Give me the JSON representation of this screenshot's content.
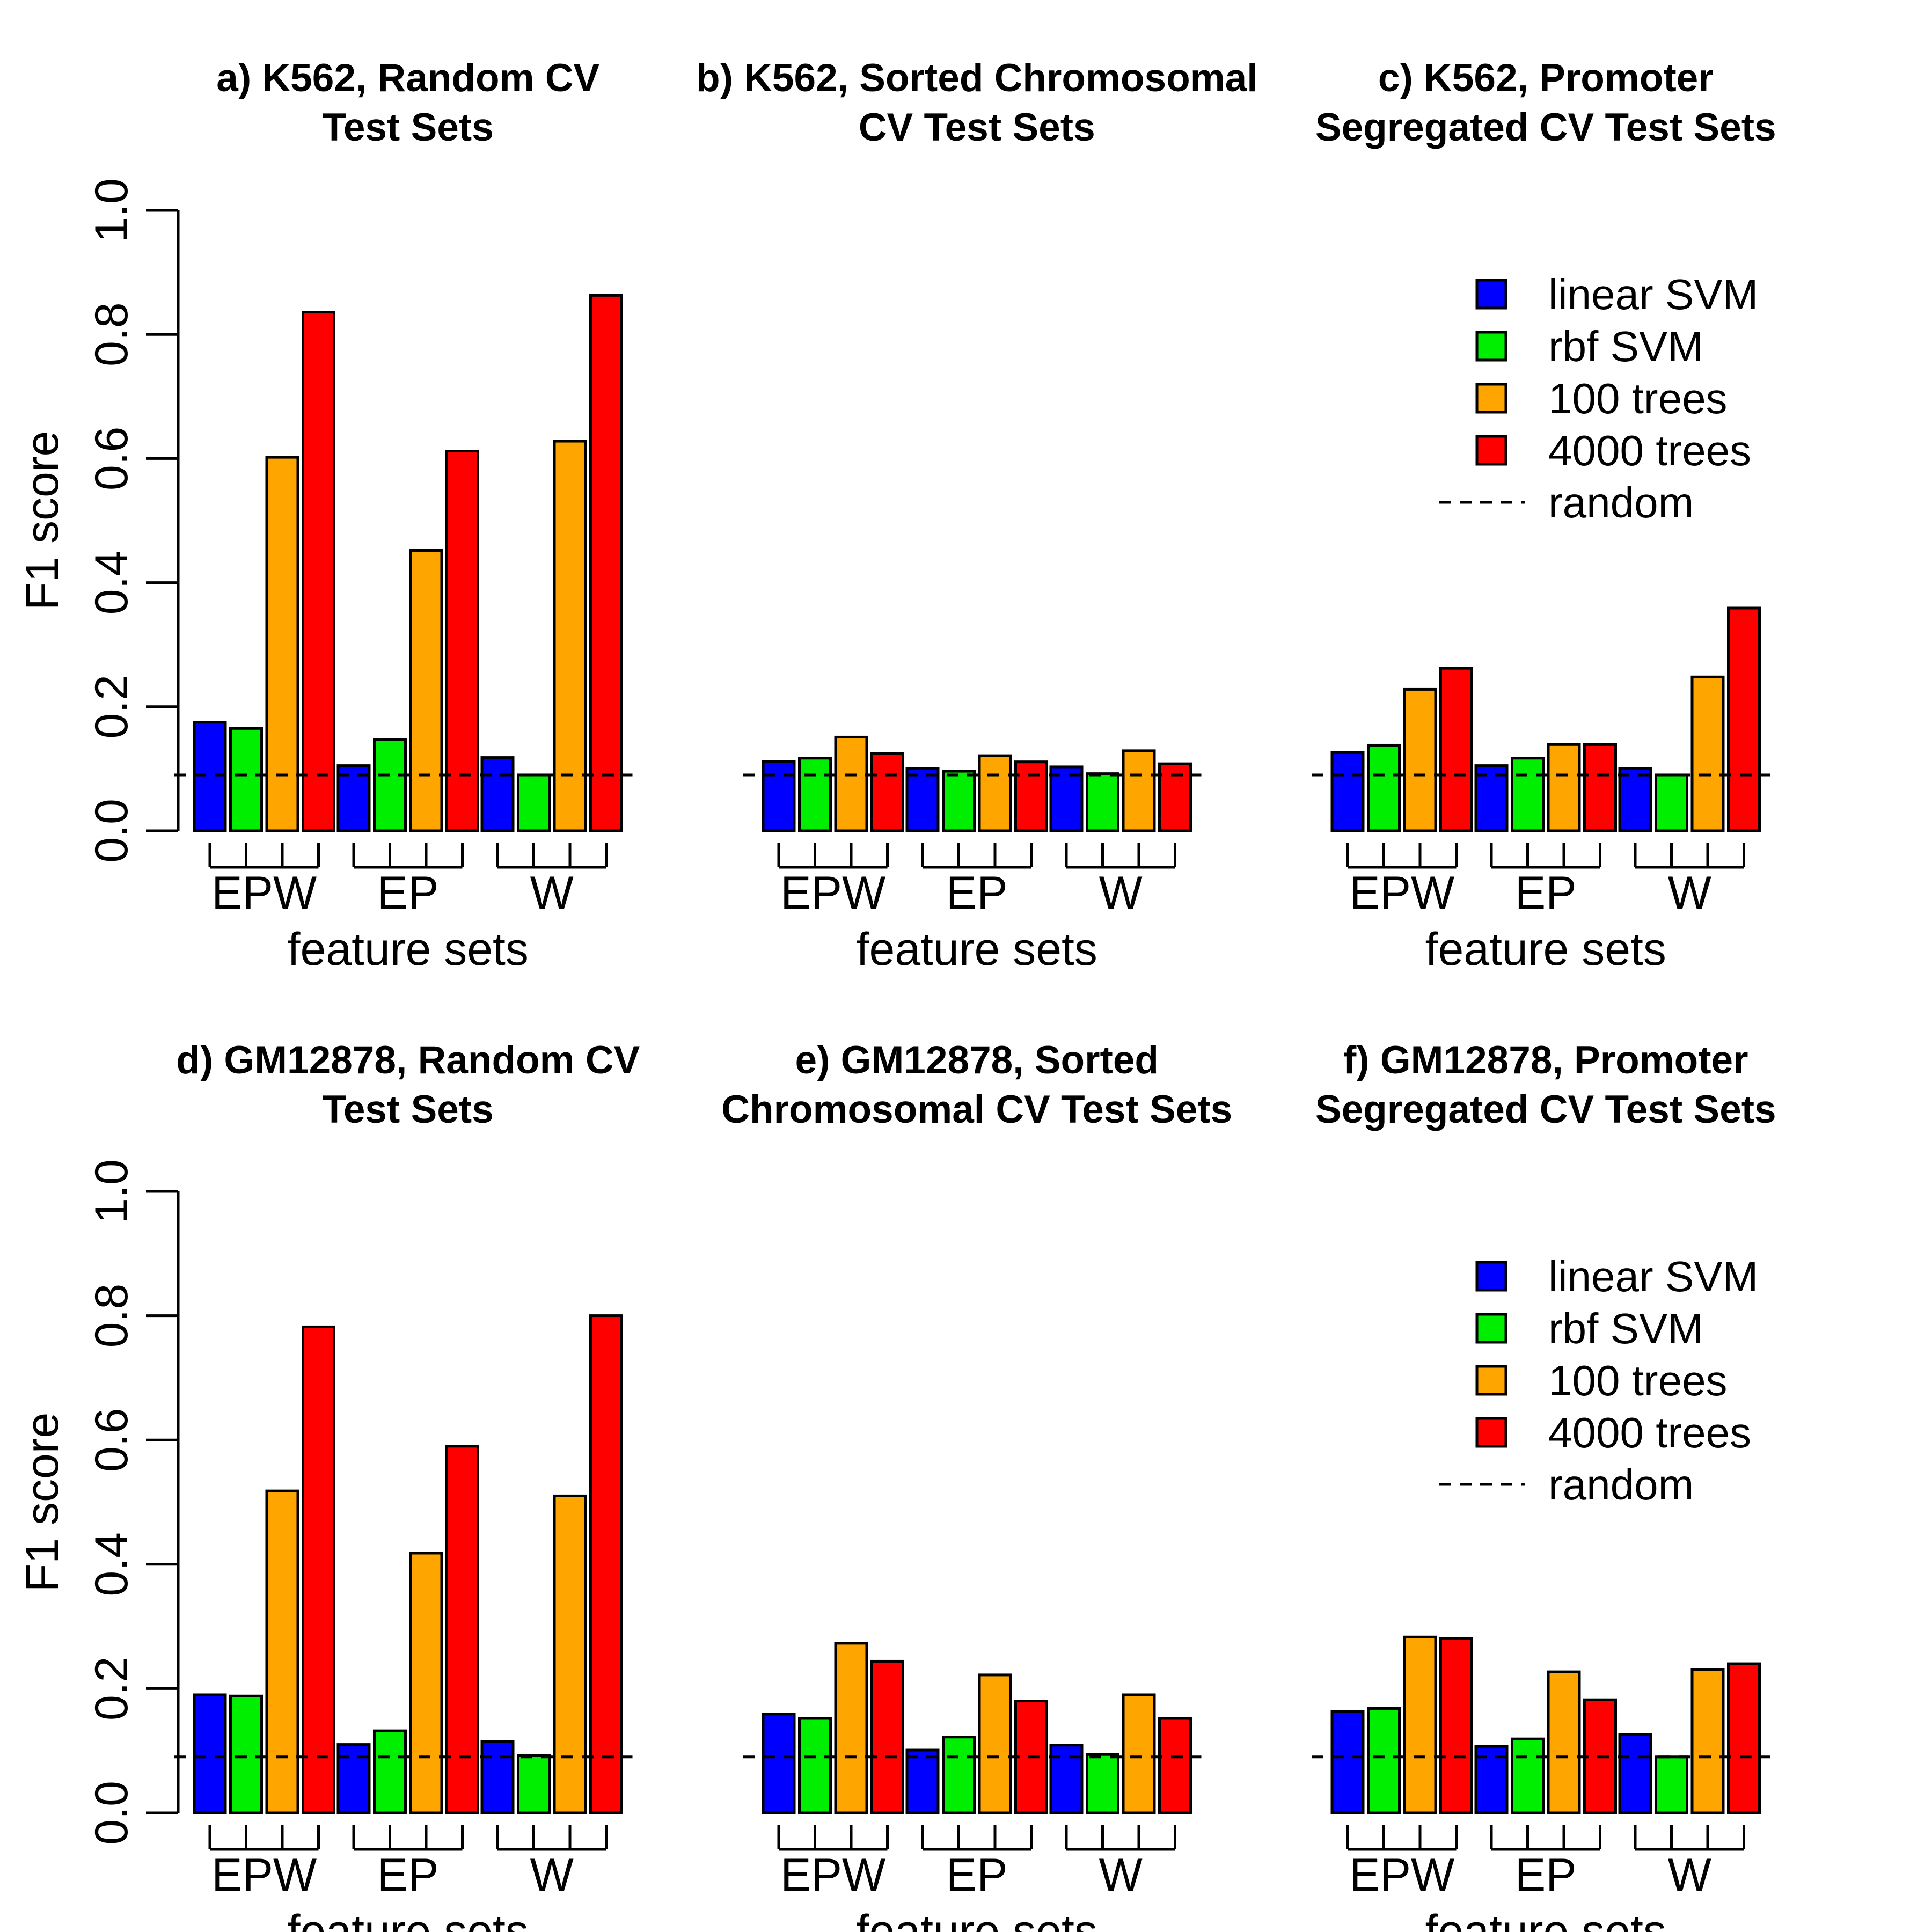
{
  "colors": {
    "linear_svm": "#0000ff",
    "rbf_svm": "#00ee00",
    "100_trees": "#ffa500",
    "4000_trees": "#ff0000",
    "bar_stroke": "#000000",
    "random_line": "#000000"
  },
  "legend": {
    "items": [
      {
        "label": "linear SVM",
        "color_key": "linear_svm"
      },
      {
        "label": "rbf SVM",
        "color_key": "rbf_svm"
      },
      {
        "label": "100 trees",
        "color_key": "100_trees"
      },
      {
        "label": "4000 trees",
        "color_key": "4000_trees"
      }
    ],
    "random_label": "random"
  },
  "chart_data": [
    {
      "type": "bar",
      "title": [
        "a) K562, Random CV",
        "Test Sets"
      ],
      "xlabel": "feature sets",
      "ylabel": "F1 score",
      "ylim": [
        0,
        1
      ],
      "yticks": [
        "0.0",
        "0.2",
        "0.4",
        "0.6",
        "0.8",
        "1.0"
      ],
      "categories": [
        "EPW",
        "EP",
        "W"
      ],
      "series": [
        {
          "name": "linear SVM",
          "values": [
            0.175,
            0.105,
            0.118
          ]
        },
        {
          "name": "rbf SVM",
          "values": [
            0.165,
            0.147,
            0.09
          ]
        },
        {
          "name": "100 trees",
          "values": [
            0.602,
            0.452,
            0.628
          ]
        },
        {
          "name": "4000 trees",
          "values": [
            0.836,
            0.612,
            0.863
          ]
        }
      ],
      "random_baseline": 0.09,
      "legend": false
    },
    {
      "type": "bar",
      "title": [
        "b) K562, Sorted Chromosomal",
        "CV Test Sets"
      ],
      "xlabel": "feature sets",
      "ylabel": "",
      "ylim": [
        0,
        1
      ],
      "categories": [
        "EPW",
        "EP",
        "W"
      ],
      "series": [
        {
          "name": "linear SVM",
          "values": [
            0.112,
            0.1,
            0.103
          ]
        },
        {
          "name": "rbf SVM",
          "values": [
            0.117,
            0.096,
            0.092
          ]
        },
        {
          "name": "100 trees",
          "values": [
            0.151,
            0.121,
            0.129
          ]
        },
        {
          "name": "4000 trees",
          "values": [
            0.125,
            0.111,
            0.108
          ]
        }
      ],
      "random_baseline": 0.09,
      "legend": false
    },
    {
      "type": "bar",
      "title": [
        "c) K562, Promoter",
        "Segregated CV Test Sets"
      ],
      "xlabel": "feature sets",
      "ylabel": "",
      "ylim": [
        0,
        1
      ],
      "categories": [
        "EPW",
        "EP",
        "W"
      ],
      "series": [
        {
          "name": "linear SVM",
          "values": [
            0.126,
            0.105,
            0.1
          ]
        },
        {
          "name": "rbf SVM",
          "values": [
            0.138,
            0.117,
            0.09
          ]
        },
        {
          "name": "100 trees",
          "values": [
            0.228,
            0.139,
            0.248
          ]
        },
        {
          "name": "4000 trees",
          "values": [
            0.262,
            0.139,
            0.359
          ]
        }
      ],
      "random_baseline": 0.09,
      "legend": true,
      "legend_position": "top-right"
    },
    {
      "type": "bar",
      "title": [
        "d) GM12878, Random CV",
        "Test Sets"
      ],
      "xlabel": "feature sets",
      "ylabel": "F1 score",
      "ylim": [
        0,
        1
      ],
      "yticks": [
        "0.0",
        "0.2",
        "0.4",
        "0.6",
        "0.8",
        "1.0"
      ],
      "categories": [
        "EPW",
        "EP",
        "W"
      ],
      "series": [
        {
          "name": "linear SVM",
          "values": [
            0.19,
            0.11,
            0.115
          ]
        },
        {
          "name": "rbf SVM",
          "values": [
            0.188,
            0.132,
            0.092
          ]
        },
        {
          "name": "100 trees",
          "values": [
            0.518,
            0.418,
            0.51
          ]
        },
        {
          "name": "4000 trees",
          "values": [
            0.782,
            0.59,
            0.8
          ]
        }
      ],
      "random_baseline": 0.09,
      "legend": false
    },
    {
      "type": "bar",
      "title": [
        "e) GM12878, Sorted",
        "Chromosomal CV Test Sets"
      ],
      "xlabel": "feature sets",
      "ylabel": "",
      "ylim": [
        0,
        1
      ],
      "categories": [
        "EPW",
        "EP",
        "W"
      ],
      "series": [
        {
          "name": "linear SVM",
          "values": [
            0.159,
            0.101,
            0.109
          ]
        },
        {
          "name": "rbf SVM",
          "values": [
            0.152,
            0.122,
            0.094
          ]
        },
        {
          "name": "100 trees",
          "values": [
            0.273,
            0.222,
            0.19
          ]
        },
        {
          "name": "4000 trees",
          "values": [
            0.244,
            0.18,
            0.152
          ]
        }
      ],
      "random_baseline": 0.09,
      "legend": false
    },
    {
      "type": "bar",
      "title": [
        "f) GM12878, Promoter",
        "Segregated CV Test Sets"
      ],
      "xlabel": "feature sets",
      "ylabel": "",
      "ylim": [
        0,
        1
      ],
      "categories": [
        "EPW",
        "EP",
        "W"
      ],
      "series": [
        {
          "name": "linear SVM",
          "values": [
            0.163,
            0.107,
            0.126
          ]
        },
        {
          "name": "rbf SVM",
          "values": [
            0.168,
            0.119,
            0.09
          ]
        },
        {
          "name": "100 trees",
          "values": [
            0.283,
            0.227,
            0.231
          ]
        },
        {
          "name": "4000 trees",
          "values": [
            0.281,
            0.182,
            0.24
          ]
        }
      ],
      "random_baseline": 0.09,
      "legend": true,
      "legend_position": "top-right"
    }
  ]
}
